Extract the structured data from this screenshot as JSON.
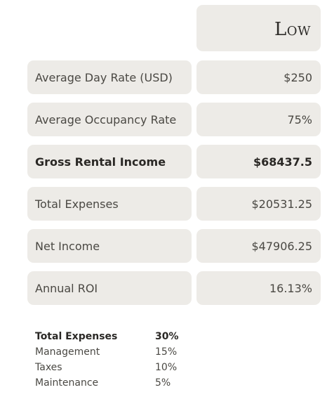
{
  "header": {
    "column_title": "Low"
  },
  "rows": [
    {
      "label": "Average Day Rate (USD)",
      "value": "$250"
    },
    {
      "label": "Average Occupancy Rate",
      "value": "75%"
    },
    {
      "label": "Gross Rental Income",
      "value": "$68437.5"
    },
    {
      "label": "Total Expenses",
      "value": "$20531.25"
    },
    {
      "label": "Net Income",
      "value": "$47906.25"
    },
    {
      "label": "Annual ROI",
      "value": "16.13%"
    }
  ],
  "breakdown": {
    "title": "Total Expenses",
    "title_value": "30%",
    "items": [
      {
        "label": "Management",
        "value": "15%"
      },
      {
        "label": "Taxes",
        "value": "10%"
      },
      {
        "label": "Maintenance",
        "value": "5%"
      }
    ]
  }
}
